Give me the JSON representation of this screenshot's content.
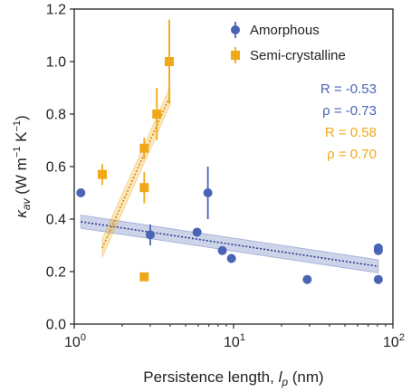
{
  "chart_data": {
    "type": "scatter",
    "xscale": "log",
    "xlim": [
      1,
      100
    ],
    "ylim": [
      0.0,
      1.2
    ],
    "xlabel": "Persistence length, l_p (nm)",
    "xlabel_main": "Persistence length, ",
    "xlabel_var": "l",
    "xlabel_sub": "p",
    "xlabel_unit": " (nm)",
    "ylabel": "κ_av (W m⁻¹ K⁻¹)",
    "ylabel_var": "κ",
    "ylabel_sub": "av",
    "ylabel_unit": " (W m",
    "ylabel_exp1": "−1",
    "ylabel_mid": " K",
    "ylabel_exp2": "−1",
    "ylabel_close": ")",
    "x_ticks": [
      {
        "value": 1,
        "base": "10",
        "exp": "0"
      },
      {
        "value": 10,
        "base": "10",
        "exp": "1"
      },
      {
        "value": 100,
        "base": "10",
        "exp": "2"
      }
    ],
    "y_ticks": [
      "0.0",
      "0.2",
      "0.4",
      "0.6",
      "0.8",
      "1.0",
      "1.2"
    ],
    "grid": false,
    "legend_position": "top-right",
    "series": [
      {
        "name": "Amorphous",
        "marker": "circle",
        "color": "#4a64b4",
        "points": [
          {
            "x": 1.1,
            "y": 0.5,
            "err": 0
          },
          {
            "x": 3.0,
            "y": 0.34,
            "err": 0.04
          },
          {
            "x": 5.9,
            "y": 0.35,
            "err": 0
          },
          {
            "x": 6.9,
            "y": 0.5,
            "err": 0.1
          },
          {
            "x": 8.5,
            "y": 0.28,
            "err": 0
          },
          {
            "x": 9.7,
            "y": 0.25,
            "err": 0
          },
          {
            "x": 29,
            "y": 0.17,
            "err": 0
          },
          {
            "x": 81,
            "y": 0.29,
            "err": 0
          },
          {
            "x": 81,
            "y": 0.28,
            "err": 0
          },
          {
            "x": 81,
            "y": 0.17,
            "err": 0
          }
        ],
        "fit": {
          "x": [
            1.1,
            81
          ],
          "y": [
            0.39,
            0.22
          ],
          "band": 0.025
        }
      },
      {
        "name": "Semi-crystalline",
        "marker": "square",
        "color": "#f0a818",
        "points": [
          {
            "x": 1.5,
            "y": 0.57,
            "err": 0.04
          },
          {
            "x": 2.75,
            "y": 0.52,
            "err": 0.06
          },
          {
            "x": 2.75,
            "y": 0.67,
            "err": 0.04
          },
          {
            "x": 2.75,
            "y": 0.18,
            "err": 0
          },
          {
            "x": 3.3,
            "y": 0.8,
            "err": 0.1
          },
          {
            "x": 3.95,
            "y": 1.0,
            "err": 0.16
          }
        ],
        "fit": {
          "x": [
            1.5,
            4.0
          ],
          "y": [
            0.29,
            0.87
          ],
          "band": 0.035
        }
      }
    ],
    "annotations": [
      {
        "text": "R = -0.53",
        "color": "#4a64b4"
      },
      {
        "text": "ρ = -0.73",
        "color": "#4a64b4"
      },
      {
        "text": "R = 0.58",
        "color": "#f0a818"
      },
      {
        "text": "ρ = 0.70",
        "color": "#f0a818"
      }
    ]
  }
}
